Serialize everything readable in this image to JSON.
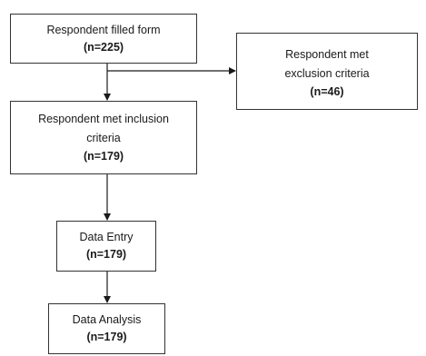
{
  "flowchart": {
    "nodes": {
      "filled_form": {
        "label": "Respondent filled form",
        "count": "(n=225)"
      },
      "exclusion": {
        "label_line1": "Respondent met",
        "label_line2": "exclusion criteria",
        "count": "(n=46)"
      },
      "inclusion": {
        "label_line1": "Respondent met inclusion",
        "label_line2": "criteria",
        "count": "(n=179)"
      },
      "data_entry": {
        "label": "Data Entry",
        "count": "(n=179)"
      },
      "data_analysis": {
        "label": "Data Analysis",
        "count": "(n=179)"
      }
    },
    "edges": [
      {
        "from": "filled_form",
        "to": "inclusion"
      },
      {
        "from": "filled_form",
        "to": "exclusion"
      },
      {
        "from": "inclusion",
        "to": "data_entry"
      },
      {
        "from": "data_entry",
        "to": "data_analysis"
      }
    ],
    "colors": {
      "border": "#333333",
      "arrow": "#1a1a1a",
      "text": "#1a1a1a"
    }
  }
}
